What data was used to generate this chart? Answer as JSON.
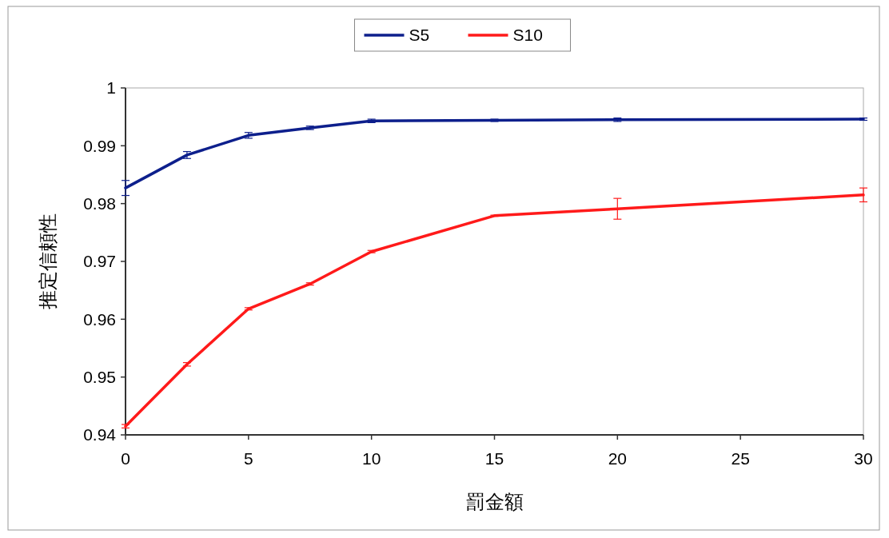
{
  "chart_data": {
    "type": "line",
    "xlabel": "罰金額",
    "ylabel": "推定信頼性",
    "x": [
      0,
      2.5,
      5,
      7.5,
      10,
      15,
      20,
      30
    ],
    "xlim": [
      0,
      30
    ],
    "xticks": [
      0,
      5,
      10,
      15,
      20,
      25,
      30
    ],
    "ylim": [
      0.94,
      1
    ],
    "yticks": [
      0.94,
      0.95,
      0.96,
      0.97,
      0.98,
      0.99,
      1
    ],
    "grid": false,
    "legend": "top",
    "marker": "none",
    "line_style": "solid",
    "series": [
      {
        "name": "S5",
        "color": "#0d1f8c",
        "values": [
          0.9827,
          0.9884,
          0.9918,
          0.9931,
          0.9943,
          0.9944,
          0.9945,
          0.9946
        ],
        "errors": [
          0.0013,
          0.0006,
          0.0005,
          0.0003,
          0.0003,
          0.0002,
          0.0003,
          0.0002
        ]
      },
      {
        "name": "S10",
        "color": "#ff1a1a",
        "values": [
          0.9415,
          0.9522,
          0.9618,
          0.9661,
          0.9717,
          0.9779,
          0.9791,
          0.9815
        ],
        "errors": [
          0.0003,
          0.0003,
          0.0002,
          0.0002,
          0.0002,
          0.0001,
          0.0018,
          0.0012
        ]
      }
    ]
  }
}
